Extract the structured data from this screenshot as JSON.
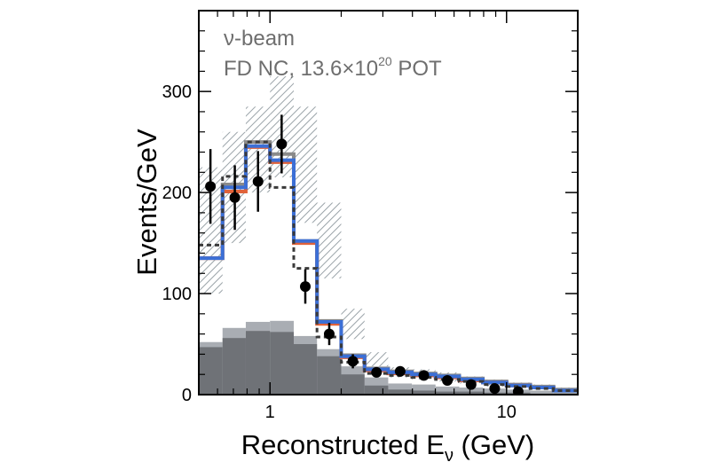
{
  "chart_data": {
    "type": "histogram",
    "xscale": "log",
    "xlim": [
      0.5,
      20
    ],
    "ylim": [
      0,
      380
    ],
    "ylabel": "Events/GeV",
    "xlabel": {
      "prefix": "Reconstructed E",
      "sub": "ν",
      "suffix": " (GeV)"
    },
    "annotations": {
      "line1": "ν-beam",
      "line2_prefix": "FD NC, 13.6×10",
      "line2_sup": "20",
      "line2_suffix": " POT"
    },
    "y_ticks": [
      0,
      100,
      200,
      300
    ],
    "x_tick_labels": [
      1,
      10
    ],
    "bin_edges": [
      0.5,
      0.63,
      0.79,
      1.0,
      1.26,
      1.58,
      2.0,
      2.51,
      3.16,
      3.98,
      5.01,
      6.31,
      7.94,
      10.0,
      12.6,
      15.8,
      20.0
    ],
    "series": [
      {
        "name": "band_high",
        "values": [
          225,
          260,
          285,
          315,
          285,
          190,
          85,
          42,
          27,
          25,
          22,
          18,
          15,
          12,
          10,
          7
        ]
      },
      {
        "name": "band_low",
        "values": [
          100,
          150,
          200,
          215,
          170,
          115,
          55,
          28,
          17,
          15,
          13,
          11,
          8,
          7,
          5,
          3
        ]
      },
      {
        "name": "light_gray",
        "values": [
          52,
          66,
          72,
          73,
          58,
          45,
          28,
          17,
          11,
          10,
          8,
          7,
          6,
          5,
          4,
          3
        ]
      },
      {
        "name": "dark_gray",
        "values": [
          47,
          56,
          63,
          62,
          50,
          38,
          20,
          9,
          5,
          4,
          3,
          3,
          2,
          2,
          1,
          1
        ]
      },
      {
        "name": "gray_step",
        "values": [
          135,
          208,
          250,
          238,
          152,
          73,
          39,
          26,
          23,
          21,
          19,
          16,
          13,
          10,
          8,
          5
        ]
      },
      {
        "name": "red_step",
        "values": [
          135,
          201,
          245,
          230,
          150,
          70,
          37,
          24,
          21,
          19,
          17,
          14,
          12,
          9,
          7,
          4
        ]
      },
      {
        "name": "blue_step",
        "values": [
          135,
          205,
          246,
          232,
          152,
          72,
          38,
          25,
          22,
          20,
          18,
          15,
          12,
          9,
          7,
          4
        ]
      },
      {
        "name": "dashed_step",
        "values": [
          148,
          216,
          250,
          205,
          125,
          57,
          32,
          21,
          19,
          17,
          15,
          13,
          10,
          8,
          6,
          4
        ]
      }
    ],
    "data_points": [
      {
        "x": 0.56,
        "y": 206,
        "err": 37
      },
      {
        "x": 0.71,
        "y": 195,
        "err": 32
      },
      {
        "x": 0.89,
        "y": 211,
        "err": 30
      },
      {
        "x": 1.12,
        "y": 248,
        "err": 29
      },
      {
        "x": 1.41,
        "y": 107,
        "err": 17
      },
      {
        "x": 1.78,
        "y": 60,
        "err": 11
      },
      {
        "x": 2.24,
        "y": 33,
        "err": 7
      },
      {
        "x": 2.82,
        "y": 22,
        "err": 5
      },
      {
        "x": 3.55,
        "y": 23,
        "err": 4
      },
      {
        "x": 4.47,
        "y": 19,
        "err": 3
      },
      {
        "x": 5.62,
        "y": 14,
        "err": 3
      },
      {
        "x": 7.08,
        "y": 10,
        "err": 2
      },
      {
        "x": 8.91,
        "y": 6,
        "err": 2
      },
      {
        "x": 11.2,
        "y": 3,
        "err": 1
      }
    ],
    "colors": {
      "blue": "#3b6fd6",
      "red": "#e0623a",
      "gray_line": "#8a8a8a",
      "dashed": "#3a3a3a",
      "light_gray": "#a9adb3",
      "dark_gray": "#6f7277",
      "hatch": "#9aa3a8",
      "data": "#000000",
      "annotation": "#6e6e6e"
    }
  }
}
